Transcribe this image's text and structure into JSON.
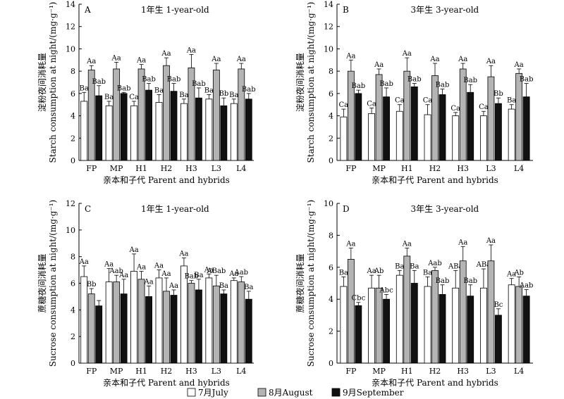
{
  "legend": {
    "entries": [
      {
        "label": "7月July",
        "fill": "#ffffff"
      },
      {
        "label": "8月August",
        "fill": "#b4b4b4"
      },
      {
        "label": "9月September",
        "fill": "#111111"
      }
    ]
  },
  "chart_data": [
    {
      "type": "bar",
      "panel": "A",
      "title": "1年生 1-year-old",
      "xlabel": "亲本和子代 Parent and hybrids",
      "ylabel": "淀粉夜间消耗量",
      "ylabel2": "Starch consumption at night/(mg·g⁻¹)",
      "ylim": [
        0,
        14
      ],
      "yticks": [
        0,
        2,
        4,
        6,
        8,
        10,
        12,
        14
      ],
      "categories": [
        "FP",
        "MP",
        "H1",
        "H2",
        "H3",
        "L3",
        "L4"
      ],
      "series": [
        {
          "name": "7月July",
          "values": [
            5.3,
            4.9,
            4.9,
            5.2,
            5.1,
            5.5,
            5.1
          ],
          "errors": [
            0.8,
            0.4,
            0.4,
            0.7,
            0.4,
            0.4,
            0.4
          ],
          "labels": [
            "Ba",
            "Ba",
            "Ca",
            "Ba",
            "Ba",
            "Ba",
            "Ba"
          ]
        },
        {
          "name": "8月August",
          "values": [
            8.1,
            8.2,
            8.2,
            8.5,
            8.3,
            8.1,
            8.2
          ],
          "errors": [
            0.4,
            0.6,
            0.4,
            0.7,
            1.2,
            0.6,
            0.5
          ],
          "labels": [
            "Aa",
            "Aa",
            "Aa",
            "Aa",
            "Aa",
            "Aa",
            "Aa"
          ]
        },
        {
          "name": "9月September",
          "values": [
            5.8,
            6.0,
            6.3,
            6.2,
            5.6,
            4.9,
            5.5
          ],
          "errors": [
            0.9,
            0.1,
            0.6,
            0.7,
            0.9,
            0.7,
            0.5
          ],
          "labels": [
            "Bab",
            "Bab",
            "Bab",
            "Bab",
            "Bab",
            "Bb",
            "Bab"
          ]
        }
      ]
    },
    {
      "type": "bar",
      "panel": "B",
      "title": "3年生 3-year-old",
      "xlabel": "亲本和子代 Parent and hybrids",
      "ylabel": "淀粉夜间消耗量",
      "ylabel2": "Starch consumption at night/(mg·g⁻¹)",
      "ylim": [
        0,
        14
      ],
      "yticks": [
        0,
        2,
        4,
        6,
        8,
        10,
        12,
        14
      ],
      "categories": [
        "FP",
        "MP",
        "H1",
        "H2",
        "H3",
        "L3",
        "L4"
      ],
      "series": [
        {
          "name": "7月July",
          "values": [
            3.9,
            4.2,
            4.4,
            4.1,
            4.0,
            4.0,
            4.6
          ],
          "errors": [
            0.7,
            0.5,
            0.6,
            0.9,
            0.3,
            0.4,
            0.4
          ],
          "labels": [
            "Ca",
            "Ca",
            "Ca",
            "Ca",
            "Ca",
            "Ca",
            "Ba"
          ]
        },
        {
          "name": "8月August",
          "values": [
            8.0,
            7.7,
            8.0,
            7.6,
            8.2,
            7.5,
            7.8
          ],
          "errors": [
            1.0,
            0.5,
            1.2,
            1.1,
            0.5,
            1.0,
            0.4
          ],
          "labels": [
            "Aa",
            "Aa",
            "Aa",
            "Aa",
            "Aa",
            "Aa",
            "Aa"
          ]
        },
        {
          "name": "9月September",
          "values": [
            6.0,
            5.7,
            6.6,
            5.9,
            6.1,
            5.1,
            5.7
          ],
          "errors": [
            0.3,
            0.8,
            0.3,
            0.5,
            0.7,
            0.5,
            1.2
          ],
          "labels": [
            "Bab",
            "Bab",
            "Bab",
            "Bab",
            "Bab",
            "Bb",
            "Bab"
          ]
        }
      ]
    },
    {
      "type": "bar",
      "panel": "C",
      "title": "1年生 1-year-old",
      "xlabel": "亲本和子代 Parent and hybrids",
      "ylabel": "蔗糖夜间消耗量",
      "ylabel2": "Sucrose consumption at night/(mg·g⁻¹)",
      "ylim": [
        0,
        12
      ],
      "yticks": [
        0,
        2,
        4,
        6,
        8,
        10,
        12
      ],
      "categories": [
        "FP",
        "MP",
        "H1",
        "H2",
        "H3",
        "L3",
        "L4"
      ],
      "series": [
        {
          "name": "7月July",
          "values": [
            6.5,
            6.1,
            6.9,
            6.4,
            7.3,
            6.4,
            6.2
          ],
          "errors": [
            0.8,
            1.0,
            1.3,
            0.6,
            0.6,
            0.3,
            0.2
          ],
          "labels": [
            "Aa",
            "Aa",
            "Aa",
            "Aa",
            "Aa",
            "Aa",
            "Aa"
          ]
        },
        {
          "name": "8月August",
          "values": [
            5.2,
            6.1,
            6.3,
            5.4,
            6.0,
            5.8,
            6.1
          ],
          "errors": [
            0.4,
            0.5,
            0.6,
            1.0,
            0.2,
            0.8,
            0.4
          ],
          "labels": [
            "Bb",
            "Aab",
            "Aa",
            "Aa",
            "Bab",
            "ABab",
            "Aab"
          ]
        },
        {
          "name": "9月September",
          "values": [
            4.3,
            5.2,
            5.0,
            5.1,
            5.5,
            5.2,
            4.8
          ],
          "errors": [
            0.4,
            1.1,
            0.8,
            0.4,
            0.8,
            0.3,
            0.6
          ],
          "labels": [
            "",
            "Aa",
            "Aa",
            "Aa",
            "Ba",
            "Ba",
            "Ba"
          ]
        }
      ]
    },
    {
      "type": "bar",
      "panel": "D",
      "title": "3年生 3-year-old",
      "xlabel": "亲本和子代 Parent and hybrids",
      "ylabel": "蔗糖夜间消耗量",
      "ylabel2": "Sucrose consumption at night/(mg·g⁻¹)",
      "ylim": [
        0,
        10
      ],
      "yticks": [
        0,
        2,
        4,
        6,
        8,
        10
      ],
      "categories": [
        "FP",
        "MP",
        "H1",
        "H2",
        "H3",
        "L3",
        "L4"
      ],
      "series": [
        {
          "name": "7月July",
          "values": [
            4.8,
            4.7,
            5.5,
            4.8,
            4.7,
            4.7,
            4.9
          ],
          "errors": [
            0.6,
            0.8,
            0.3,
            0.6,
            1.1,
            1.2,
            0.4
          ],
          "labels": [
            "Ba",
            "Aa",
            "Ba",
            "Ba",
            "ABa",
            "ABa",
            "Aa"
          ]
        },
        {
          "name": "8月August",
          "values": [
            6.5,
            4.7,
            6.7,
            5.8,
            6.4,
            6.4,
            4.8
          ],
          "errors": [
            0.7,
            0.8,
            0.5,
            0.2,
            0.9,
            1.0,
            0.6
          ],
          "labels": [
            "Aa",
            "Ab",
            "Aa",
            "Aab",
            "Aa",
            "Aa",
            "Ab"
          ]
        },
        {
          "name": "9月September",
          "values": [
            3.6,
            4.0,
            5.0,
            4.3,
            4.2,
            3.0,
            4.2
          ],
          "errors": [
            0.2,
            0.3,
            0.8,
            0.6,
            0.7,
            0.4,
            0.4
          ],
          "labels": [
            "Cbc",
            "Abc",
            "Ba",
            "Bab",
            "Bab",
            "Bc",
            "Aab"
          ]
        }
      ]
    }
  ]
}
